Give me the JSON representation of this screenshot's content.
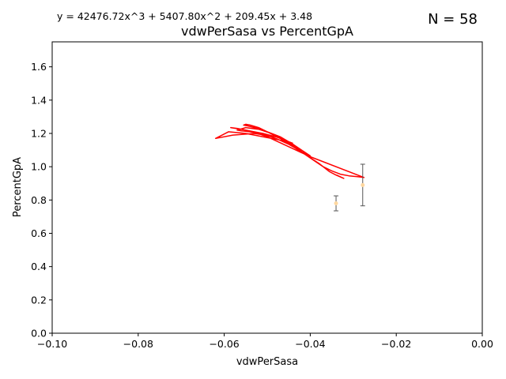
{
  "header": {
    "equation": "y = 42476.72x^3 + 5407.80x^2 + 209.45x + 3.48",
    "n_label": "N = 58"
  },
  "chart_data": {
    "type": "line",
    "title": "vdwPerSasa vs PercentGpA",
    "xlabel": "vdwPerSasa",
    "ylabel": "PercentGpA",
    "xlim": [
      -0.1,
      0.0
    ],
    "ylim": [
      0.0,
      1.75
    ],
    "xticks": [
      -0.1,
      -0.08,
      -0.06,
      -0.04,
      -0.02,
      0.0
    ],
    "xtick_labels": [
      "−0.10",
      "−0.08",
      "−0.06",
      "−0.04",
      "−0.02",
      "0.00"
    ],
    "yticks": [
      0.0,
      0.2,
      0.4,
      0.6,
      0.8,
      1.0,
      1.2,
      1.4,
      1.6
    ],
    "ytick_labels": [
      "0.0",
      "0.2",
      "0.4",
      "0.6",
      "0.8",
      "1.0",
      "1.2",
      "1.4",
      "1.6"
    ],
    "grid": false,
    "fit_color": "#ff0000",
    "point_color": "#ffd8a0",
    "errorbar_color": "#555555",
    "fit_line": {
      "x": [
        -0.0339,
        -0.0322,
        -0.034,
        -0.0355,
        -0.038,
        -0.041,
        -0.044,
        -0.047,
        -0.05,
        -0.052,
        -0.054,
        -0.055,
        -0.0555,
        -0.0545,
        -0.053,
        -0.051,
        -0.049,
        -0.047,
        -0.045,
        -0.043,
        -0.041,
        -0.039,
        -0.037,
        -0.035,
        -0.033,
        -0.031,
        -0.029,
        -0.0275,
        -0.04,
        -0.045,
        -0.05,
        -0.054,
        -0.057,
        -0.0585,
        -0.055,
        -0.051,
        -0.048,
        -0.046,
        -0.044,
        -0.042,
        -0.04,
        -0.042,
        -0.045,
        -0.048,
        -0.051,
        -0.054,
        -0.056,
        -0.057,
        -0.055,
        -0.052,
        -0.049,
        -0.047,
        -0.045,
        -0.055,
        -0.059,
        -0.062,
        -0.058,
        -0.053,
        -0.048,
        -0.044
      ],
      "y": [
        0.95,
        0.93,
        0.95,
        0.97,
        1.02,
        1.07,
        1.12,
        1.17,
        1.21,
        1.235,
        1.25,
        1.255,
        1.25,
        1.245,
        1.235,
        1.22,
        1.2,
        1.175,
        1.145,
        1.11,
        1.07,
        1.035,
        1.0,
        0.975,
        0.955,
        0.945,
        0.94,
        0.935,
        1.06,
        1.12,
        1.18,
        1.215,
        1.23,
        1.235,
        1.22,
        1.2,
        1.18,
        1.16,
        1.135,
        1.1,
        1.065,
        1.09,
        1.135,
        1.17,
        1.195,
        1.21,
        1.215,
        1.22,
        1.235,
        1.225,
        1.2,
        1.18,
        1.15,
        1.2,
        1.21,
        1.17,
        1.19,
        1.2,
        1.18,
        1.14
      ]
    },
    "points": [
      {
        "x": -0.034,
        "y": 0.78,
        "err": 0.045
      },
      {
        "x": -0.0278,
        "y": 0.89,
        "err": 0.125
      }
    ]
  }
}
